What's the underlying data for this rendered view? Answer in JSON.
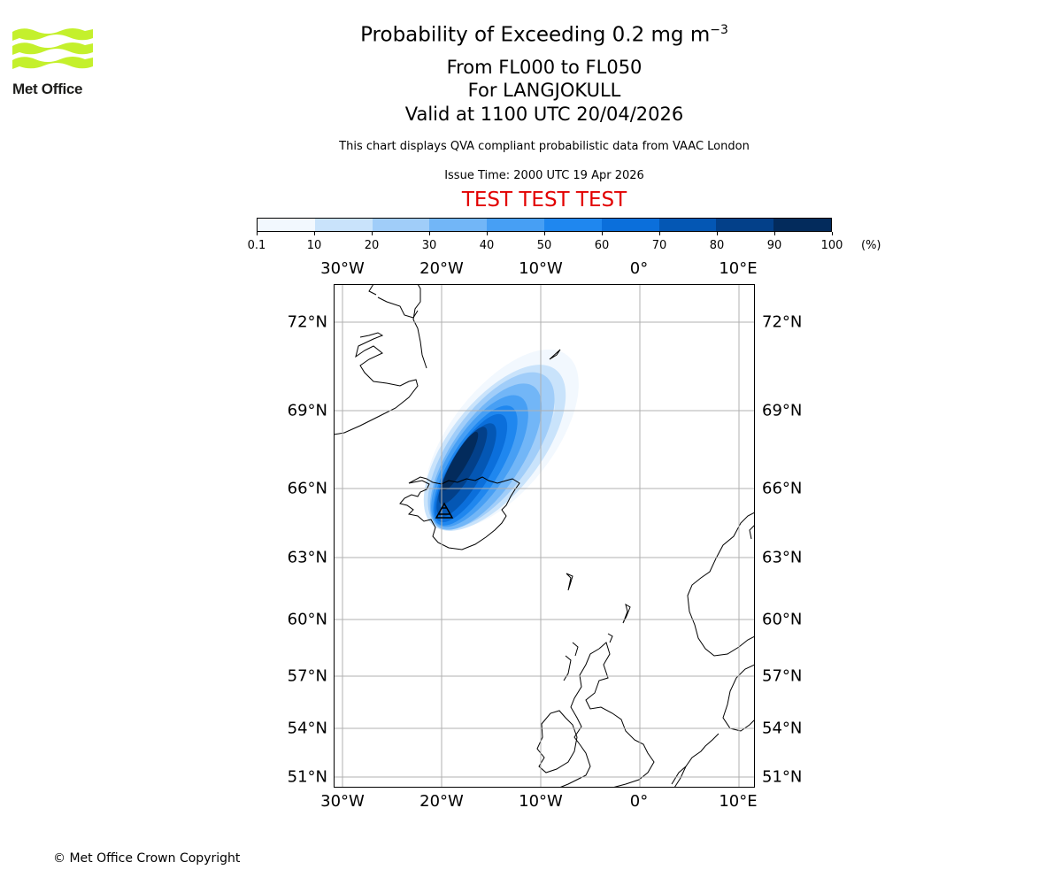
{
  "header": {
    "logo_text": "Met Office",
    "title_prefix": "Probability of Exceeding 0.2 mg m",
    "title_exponent": "−3",
    "level_range": "From FL000 to FL050",
    "volcano": "For LANGJOKULL",
    "valid_time": "Valid at 1100 UTC 20/04/2026",
    "disclaimer": "This chart displays QVA compliant probabilistic data from VAAC London",
    "issue_time": "Issue Time: 2000 UTC 19 Apr 2026",
    "test_banner": "TEST TEST TEST",
    "test_color": "#e20000"
  },
  "colorbar": {
    "ticks": [
      "0.1",
      "10",
      "20",
      "30",
      "40",
      "50",
      "60",
      "70",
      "80",
      "90",
      "100"
    ],
    "colors": [
      "#f2f8fe",
      "#c9e3fb",
      "#a0cdf9",
      "#72b6f7",
      "#479ff4",
      "#1f87ef",
      "#0b6fdb",
      "#0457b4",
      "#034089",
      "#032b5c"
    ],
    "unit": "(%)"
  },
  "map": {
    "lon_labels": [
      "30°W",
      "20°W",
      "10°W",
      "0°",
      "10°E"
    ],
    "lat_labels": [
      "72°N",
      "69°N",
      "66°N",
      "63°N",
      "60°N",
      "57°N",
      "54°N",
      "51°N"
    ],
    "source_marker": "triangle"
  },
  "footer": {
    "copyright": "© Met Office Crown Copyright"
  }
}
